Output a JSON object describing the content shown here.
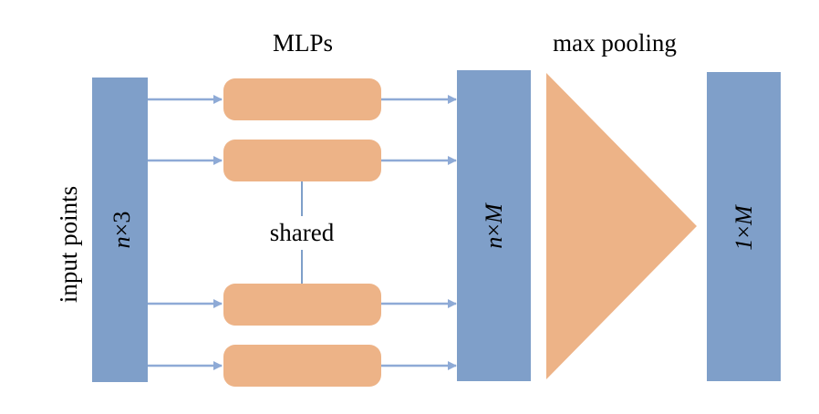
{
  "labels": {
    "mlps": "MLPs",
    "max_pooling": "max pooling",
    "shared": "shared",
    "input_points": "input points"
  },
  "blocks": {
    "input": {
      "var": "n",
      "dims": "×3"
    },
    "features": {
      "var": "n",
      "dims": "×",
      "var2": "M"
    },
    "output": {
      "num": "1",
      "dims": "×",
      "var2": "M"
    }
  },
  "colors": {
    "block": "#7f9fc9",
    "mlp": "#edb387",
    "arrow": "#8eaad6",
    "shared_line": "#7f9fc9"
  }
}
